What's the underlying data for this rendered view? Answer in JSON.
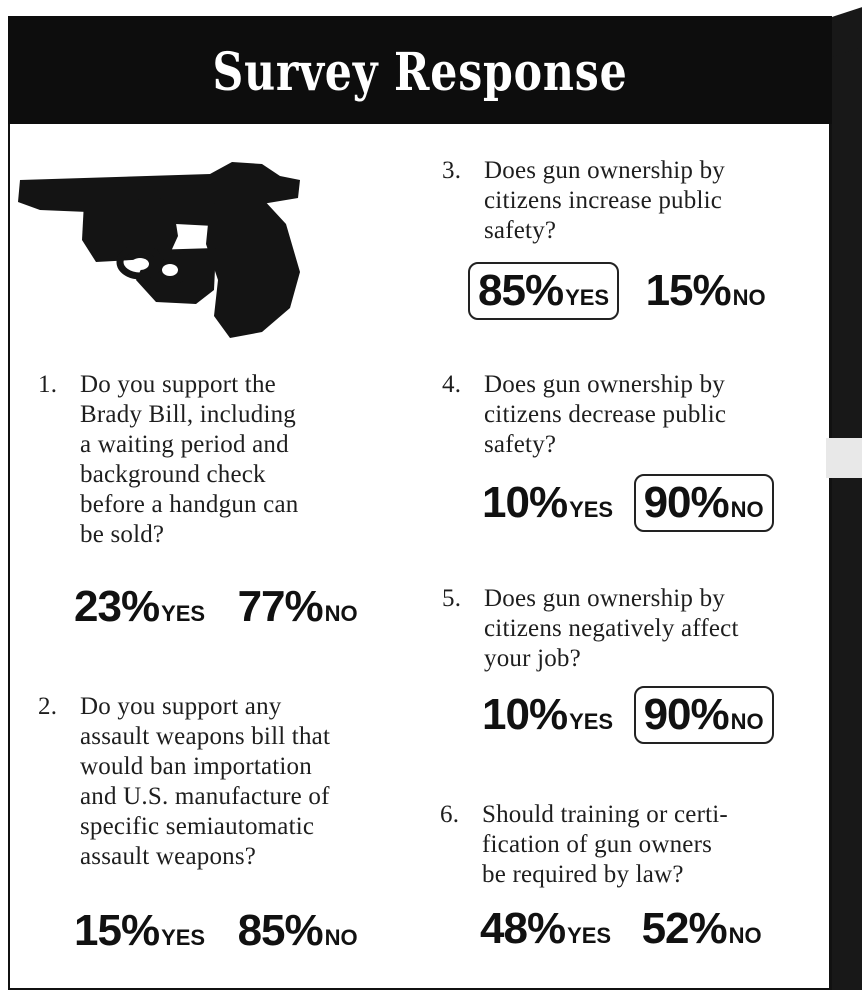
{
  "header": {
    "title": "Survey Response"
  },
  "questions": [
    {
      "number": "1.",
      "lines": [
        "Do you support the",
        "Brady Bill, including",
        "a waiting period and",
        "background check",
        "before a handgun can",
        "be sold?"
      ],
      "yes": "23%",
      "yes_label": "YES",
      "no": "77%",
      "no_label": "NO"
    },
    {
      "number": "2.",
      "lines": [
        "Do you support any",
        "assault weapons bill that",
        "would ban importation",
        "and U.S. manufacture of",
        "specific semiautomatic",
        "assault weapons?"
      ],
      "yes": "15%",
      "yes_label": "YES",
      "no": "85%",
      "no_label": "NO"
    },
    {
      "number": "3.",
      "lines": [
        "Does gun ownership by",
        "citizens increase public",
        "safety?"
      ],
      "yes": "85%",
      "yes_label": "YES",
      "no": "15%",
      "no_label": "NO",
      "circled": "yes"
    },
    {
      "number": "4.",
      "lines": [
        "Does gun ownership by",
        "citizens decrease public",
        "safety?"
      ],
      "yes": "10%",
      "yes_label": "YES",
      "no": "90%",
      "no_label": "NO",
      "circled": "no"
    },
    {
      "number": "5.",
      "lines": [
        "Does gun ownership by",
        "citizens negatively affect",
        "your job?"
      ],
      "yes": "10%",
      "yes_label": "YES",
      "no": "90%",
      "no_label": "NO",
      "circled": "no"
    },
    {
      "number": "6.",
      "lines": [
        "Should training or certi-",
        "fication of gun owners",
        "be required by law?"
      ],
      "yes": "48%",
      "yes_label": "YES",
      "no": "52%",
      "no_label": "NO"
    }
  ]
}
